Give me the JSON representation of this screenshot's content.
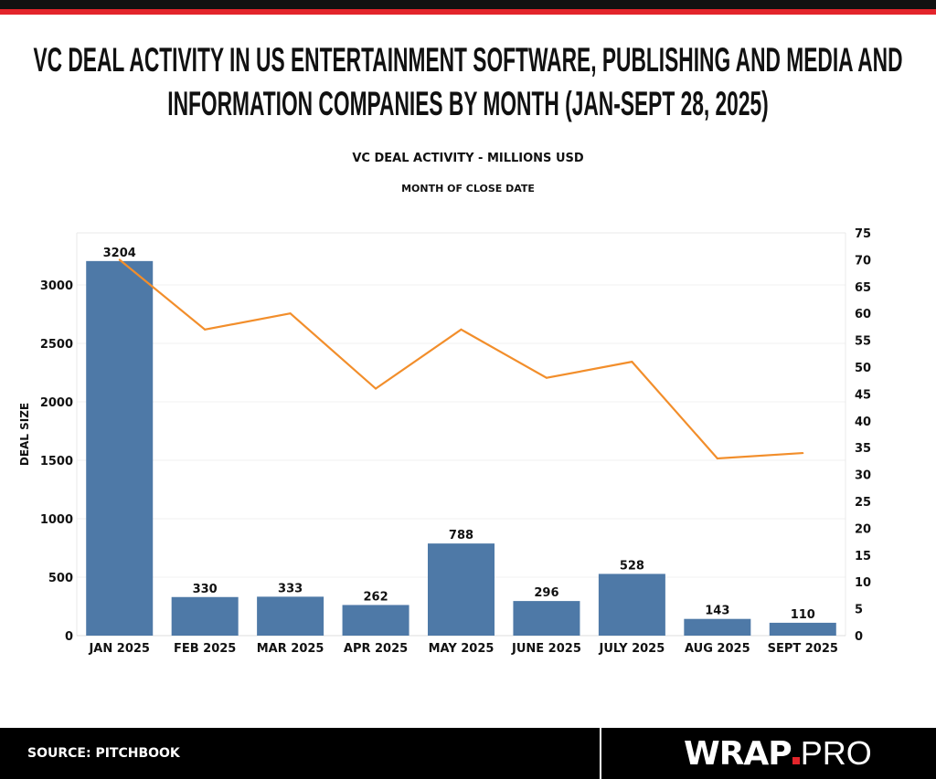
{
  "header": {
    "title": "VC DEAL ACTIVITY IN US ENTERTAINMENT SOFTWARE, PUBLISHING AND MEDIA AND INFORMATION COMPANIES BY MONTH (JAN-SEPT 28, 2025)"
  },
  "chart_data": {
    "type": "bar+line",
    "title": "VC DEAL ACTIVITY IN US ENTERTAINMENT SOFTWARE, PUBLISHING AND MEDIA AND INFORMATION COMPANIES BY MONTH (JAN-SEPT 28, 2025)",
    "subtitle": "VC DEAL ACTIVITY - MILLIONS USD",
    "xlabel": "MONTH OF CLOSE DATE",
    "ylabel": "DEAL SIZE",
    "categories": [
      "JAN 2025",
      "FEB 2025",
      "MAR 2025",
      "APR 2025",
      "MAY 2025",
      "JUNE 2025",
      "JULY 2025",
      "AUG 2025",
      "SEPT 2025"
    ],
    "series": [
      {
        "type": "bar",
        "axis": "left",
        "color": "#4e79a7",
        "values": [
          3204,
          330,
          333,
          262,
          788,
          296,
          528,
          143,
          110
        ]
      },
      {
        "type": "line",
        "axis": "right",
        "color": "#f28e2b",
        "values": [
          70,
          57,
          60,
          46,
          57,
          48,
          51,
          33,
          34
        ]
      }
    ],
    "left_axis": {
      "ylim": [
        0,
        3445
      ],
      "ticks": [
        0,
        500,
        1000,
        1500,
        2000,
        2500,
        3000
      ]
    },
    "right_axis": {
      "ylim": [
        0,
        75
      ],
      "ticks": [
        0,
        5,
        10,
        15,
        20,
        25,
        30,
        35,
        40,
        45,
        50,
        55,
        60,
        65,
        70,
        75
      ]
    },
    "grid": true
  },
  "footer": {
    "source": "SOURCE: PITCHBOOK",
    "logo": "WRAP.PRO"
  }
}
